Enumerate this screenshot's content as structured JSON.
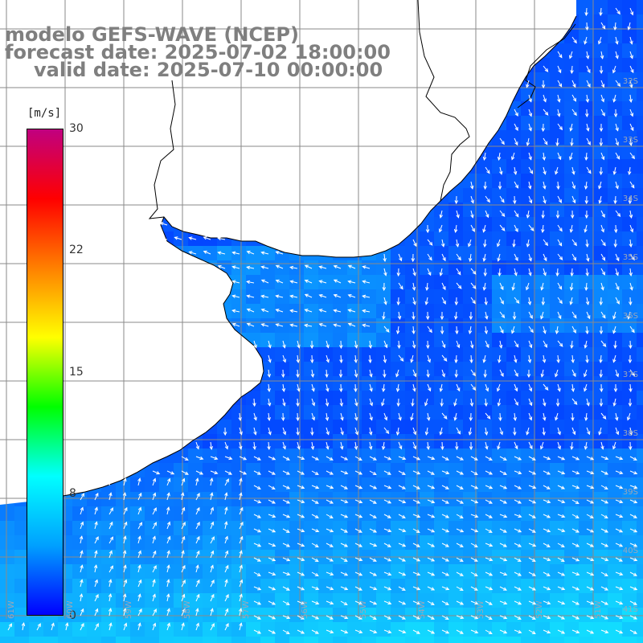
{
  "title": {
    "line1": "modelo GEFS-WAVE (NCEP)",
    "line2": "forecast date: 2025-07-02 18:00:00",
    "line3": "valid date: 2025-07-10 00:00:00"
  },
  "legend": {
    "unit": "[m/s]",
    "min": 0,
    "max": 30,
    "ticks": [
      "30",
      "22",
      "15",
      "8",
      "0"
    ],
    "colors": [
      "#0000ff",
      "#00a0ff",
      "#00ffff",
      "#00ff00",
      "#ffff00",
      "#ff8000",
      "#ff0000",
      "#c00080"
    ]
  },
  "map": {
    "land_color": "#ffffff",
    "ocean_color": "#0a3cf0",
    "grid_color": "#8a8a8a",
    "coast_color": "#000000",
    "arrow_color": "#ffffff",
    "lat_labels": [
      "32S",
      "33S",
      "34S",
      "35S",
      "36S",
      "37S",
      "38S",
      "39S",
      "40S",
      "41S"
    ],
    "lon_labels": [
      "61W",
      "60W",
      "59W",
      "58W",
      "57W",
      "56W",
      "55W",
      "54W",
      "53W",
      "52W",
      "51W"
    ]
  }
}
